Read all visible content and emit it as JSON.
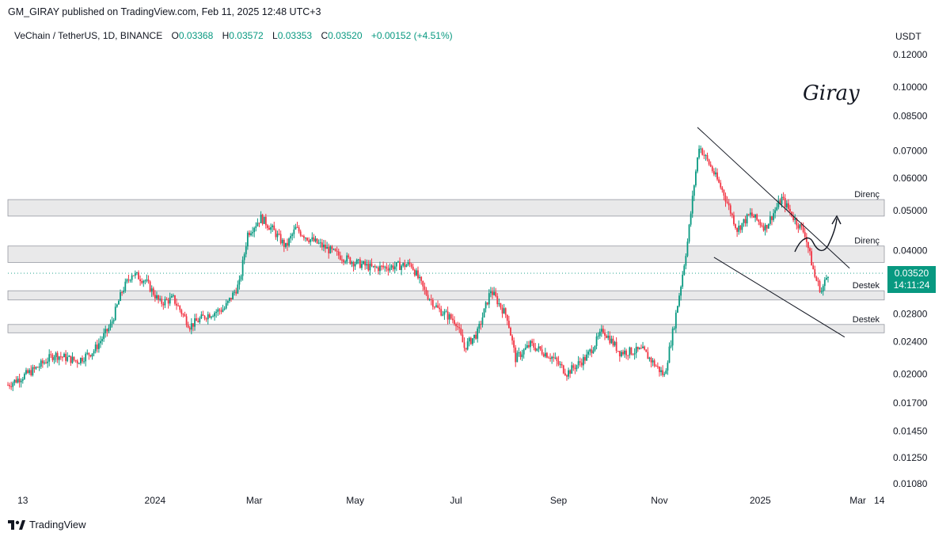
{
  "publisher_line": "GM_GIRAY published on TradingView.com, Feb 11, 2025 12:48 UTC+3",
  "symbol": {
    "name": "VeChain / TetherUS, 1D, BINANCE",
    "open_label": "O",
    "open": "0.03368",
    "high_label": "H",
    "high": "0.03572",
    "low_label": "L",
    "low": "0.03353",
    "close_label": "C",
    "close": "0.03520",
    "change": "+0.00152 (+4.51%)"
  },
  "price_unit": "USDT",
  "current_price": {
    "price": "0.03520",
    "countdown": "14:11:24",
    "color": "#089981"
  },
  "signature": "Giray",
  "footer": {
    "brand": "TradingView"
  },
  "colors": {
    "up": "#089981",
    "down": "#f23645",
    "zone_fill": "#e9e9ea",
    "zone_border": "#9598a1"
  },
  "chart_data": {
    "type": "candlestick",
    "title": "VeChain / TetherUS, 1D, BINANCE",
    "y_scale": "log",
    "ylim": [
      0.01,
      0.13
    ],
    "y_ticks": [
      "0.12000",
      "0.10000",
      "0.08500",
      "0.07000",
      "0.06000",
      "0.05000",
      "0.04000",
      "0.03520",
      "0.02800",
      "0.02400",
      "0.02000",
      "0.01700",
      "0.01450",
      "0.01250",
      "0.01080"
    ],
    "y_tick_values": [
      0.12,
      0.1,
      0.085,
      0.07,
      0.06,
      0.05,
      0.04,
      0.028,
      0.024,
      0.02,
      0.017,
      0.0145,
      0.0125,
      0.0108
    ],
    "x_ticks": [
      {
        "label": "13",
        "date": "2023-10-13"
      },
      {
        "label": "2024",
        "date": "2024-01-01"
      },
      {
        "label": "Mar",
        "date": "2024-03-01"
      },
      {
        "label": "May",
        "date": "2024-05-01"
      },
      {
        "label": "Jul",
        "date": "2024-07-01"
      },
      {
        "label": "Sep",
        "date": "2024-09-01"
      },
      {
        "label": "Nov",
        "date": "2024-11-01"
      },
      {
        "label": "2025",
        "date": "2025-01-01"
      },
      {
        "label": "Mar",
        "date": "2025-03-01"
      },
      {
        "label": "14",
        "date": "2025-03-14"
      }
    ],
    "x_range": [
      "2023-10-04",
      "2025-03-17"
    ],
    "zones": [
      {
        "label": "Direnç",
        "low": 0.0485,
        "high": 0.0532
      },
      {
        "label": "Direnç",
        "low": 0.0374,
        "high": 0.041
      },
      {
        "label": "Destek",
        "low": 0.0303,
        "high": 0.0319
      },
      {
        "label": "Destek",
        "low": 0.0252,
        "high": 0.0264
      }
    ],
    "trendlines": [
      {
        "from": {
          "date": "2024-11-24",
          "price": 0.0798
        },
        "to": {
          "date": "2025-02-24",
          "price": 0.0362
        }
      },
      {
        "from": {
          "date": "2024-12-04",
          "price": 0.0385
        },
        "to": {
          "date": "2025-02-21",
          "price": 0.0246
        }
      }
    ],
    "current_price_line": 0.0352,
    "series_anchors": [
      {
        "date": "2023-10-04",
        "close": 0.0188
      },
      {
        "date": "2023-10-20",
        "close": 0.0205
      },
      {
        "date": "2023-11-01",
        "close": 0.0223
      },
      {
        "date": "2023-11-15",
        "close": 0.0215
      },
      {
        "date": "2023-11-25",
        "close": 0.0228
      },
      {
        "date": "2023-12-05",
        "close": 0.0262
      },
      {
        "date": "2023-12-12",
        "close": 0.0318
      },
      {
        "date": "2023-12-18",
        "close": 0.0352
      },
      {
        "date": "2023-12-26",
        "close": 0.0338
      },
      {
        "date": "2024-01-04",
        "close": 0.0298
      },
      {
        "date": "2024-01-12",
        "close": 0.0305
      },
      {
        "date": "2024-01-22",
        "close": 0.0262
      },
      {
        "date": "2024-02-01",
        "close": 0.0278
      },
      {
        "date": "2024-02-12",
        "close": 0.0289
      },
      {
        "date": "2024-02-21",
        "close": 0.0332
      },
      {
        "date": "2024-02-26",
        "close": 0.044
      },
      {
        "date": "2024-03-05",
        "close": 0.048
      },
      {
        "date": "2024-03-12",
        "close": 0.045
      },
      {
        "date": "2024-03-20",
        "close": 0.0408
      },
      {
        "date": "2024-03-26",
        "close": 0.0452
      },
      {
        "date": "2024-04-02",
        "close": 0.043
      },
      {
        "date": "2024-04-12",
        "close": 0.0408
      },
      {
        "date": "2024-04-20",
        "close": 0.0391
      },
      {
        "date": "2024-04-30",
        "close": 0.0375
      },
      {
        "date": "2024-05-12",
        "close": 0.0362
      },
      {
        "date": "2024-05-22",
        "close": 0.0365
      },
      {
        "date": "2024-06-04",
        "close": 0.037
      },
      {
        "date": "2024-06-12",
        "close": 0.0318
      },
      {
        "date": "2024-06-20",
        "close": 0.0288
      },
      {
        "date": "2024-07-01",
        "close": 0.0268
      },
      {
        "date": "2024-07-06",
        "close": 0.0232
      },
      {
        "date": "2024-07-14",
        "close": 0.0252
      },
      {
        "date": "2024-07-22",
        "close": 0.032
      },
      {
        "date": "2024-08-01",
        "close": 0.0275
      },
      {
        "date": "2024-08-06",
        "close": 0.0218
      },
      {
        "date": "2024-08-15",
        "close": 0.0236
      },
      {
        "date": "2024-08-28",
        "close": 0.022
      },
      {
        "date": "2024-09-06",
        "close": 0.0201
      },
      {
        "date": "2024-09-18",
        "close": 0.022
      },
      {
        "date": "2024-09-28",
        "close": 0.0256
      },
      {
        "date": "2024-10-08",
        "close": 0.0226
      },
      {
        "date": "2024-10-22",
        "close": 0.0228
      },
      {
        "date": "2024-11-04",
        "close": 0.0198
      },
      {
        "date": "2024-11-10",
        "close": 0.0265
      },
      {
        "date": "2024-11-14",
        "close": 0.033
      },
      {
        "date": "2024-11-18",
        "close": 0.042
      },
      {
        "date": "2024-11-22",
        "close": 0.058
      },
      {
        "date": "2024-11-25",
        "close": 0.072
      },
      {
        "date": "2024-12-02",
        "close": 0.064
      },
      {
        "date": "2024-12-10",
        "close": 0.055
      },
      {
        "date": "2024-12-18",
        "close": 0.045
      },
      {
        "date": "2024-12-26",
        "close": 0.049
      },
      {
        "date": "2025-01-04",
        "close": 0.0455
      },
      {
        "date": "2025-01-14",
        "close": 0.0535
      },
      {
        "date": "2025-01-22",
        "close": 0.0475
      },
      {
        "date": "2025-01-28",
        "close": 0.044
      },
      {
        "date": "2025-02-03",
        "close": 0.0345
      },
      {
        "date": "2025-02-07",
        "close": 0.0318
      },
      {
        "date": "2025-02-11",
        "close": 0.0352
      }
    ]
  }
}
